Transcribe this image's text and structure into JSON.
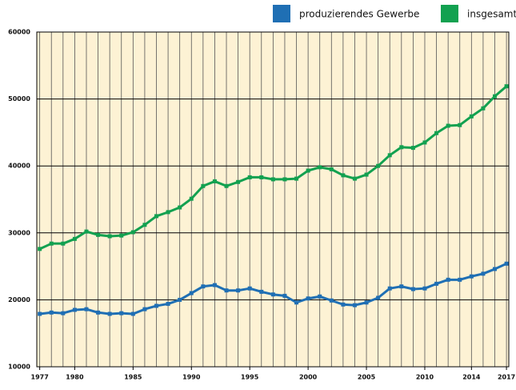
{
  "chart_data": {
    "type": "line",
    "x": [
      1977,
      1978,
      1979,
      1980,
      1981,
      1982,
      1983,
      1984,
      1985,
      1986,
      1987,
      1988,
      1989,
      1990,
      1991,
      1992,
      1993,
      1994,
      1995,
      1996,
      1997,
      1998,
      1999,
      2000,
      2001,
      2002,
      2003,
      2004,
      2005,
      2006,
      2007,
      2008,
      2009,
      2010,
      2011,
      2012,
      2013,
      2014,
      2015,
      2016,
      2017
    ],
    "series": [
      {
        "name": "produzierendes Gewerbe",
        "color": "#1f6fb4",
        "values": [
          17900,
          18100,
          18000,
          18500,
          18600,
          18100,
          17900,
          18000,
          17900,
          18600,
          19100,
          19400,
          20000,
          21000,
          22000,
          22200,
          21400,
          21400,
          21700,
          21200,
          20800,
          20600,
          19600,
          20200,
          20500,
          19900,
          19300,
          19200,
          19600,
          20300,
          21700,
          22000,
          21600,
          21700,
          22400,
          23000,
          23000,
          23500,
          23900,
          24600,
          25400
        ]
      },
      {
        "name": "insgesamt",
        "color": "#12a150",
        "values": [
          27600,
          28400,
          28400,
          29100,
          30200,
          29700,
          29500,
          29600,
          30100,
          31200,
          32500,
          33100,
          33800,
          35100,
          37000,
          37700,
          37000,
          37600,
          38300,
          38300,
          38000,
          38000,
          38100,
          39300,
          39800,
          39500,
          38600,
          38100,
          38700,
          40000,
          41600,
          42800,
          42700,
          43500,
          44900,
          46000,
          46100,
          47400,
          48600,
          50400,
          51900
        ]
      }
    ],
    "xlim": [
      1976.75,
      2017.2
    ],
    "xticks": [
      1977,
      1980,
      1985,
      1990,
      1995,
      2000,
      2005,
      2010,
      2014,
      2017
    ],
    "ylim": [
      10000,
      60000
    ],
    "yticks": [
      10000,
      20000,
      30000,
      40000,
      50000,
      60000
    ],
    "grid": true,
    "legend": "top-right"
  }
}
